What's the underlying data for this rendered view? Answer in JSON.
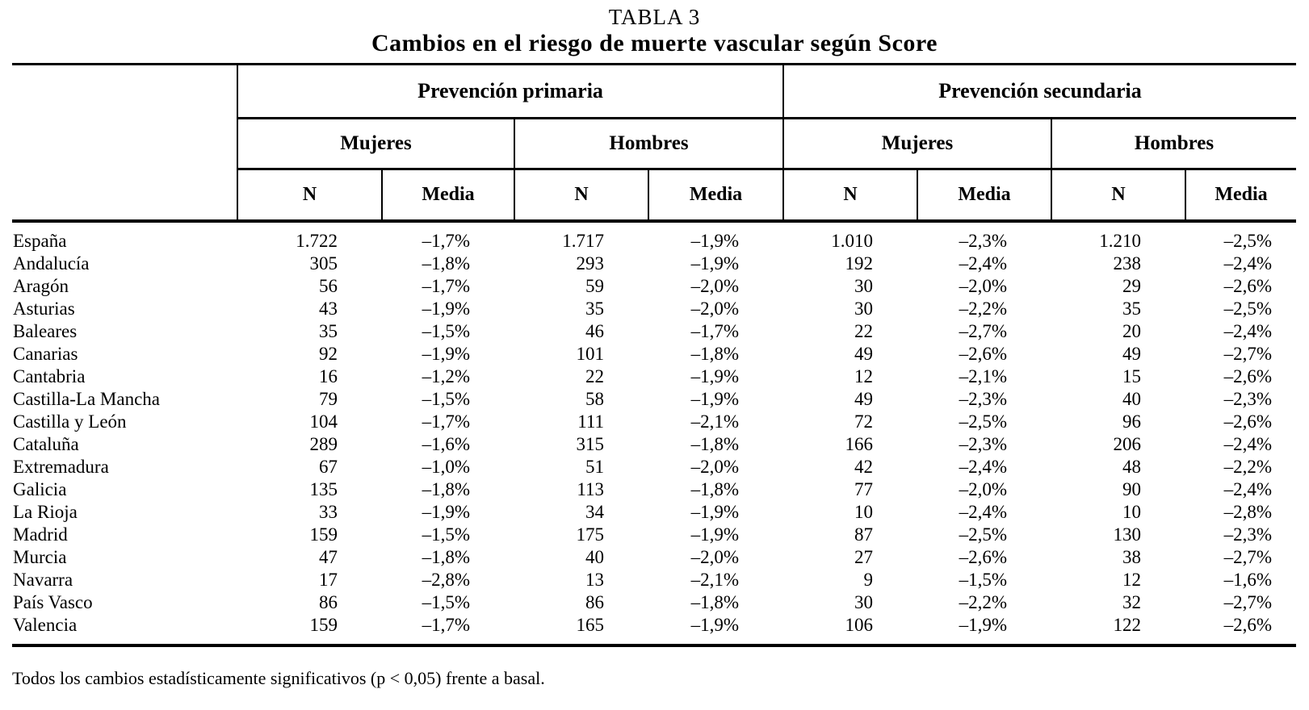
{
  "page": {
    "title_small": "TABLA 3",
    "title_bold": "Cambios en el riesgo de muerte vascular según Score",
    "footnote": "Todos los cambios estadísticamente significativos (p < 0,05) frente a basal.",
    "text_color": "#000000",
    "background_color": "#ffffff"
  },
  "table": {
    "group_headers": [
      "Prevención primaria",
      "Prevención secundaria"
    ],
    "subgroup_headers": [
      "Mujeres",
      "Hombres",
      "Mujeres",
      "Hombres"
    ],
    "col_headers": [
      "N",
      "Media",
      "N",
      "Media",
      "N",
      "Media",
      "N",
      "Media"
    ],
    "rows": [
      {
        "region": "España",
        "values": [
          "1.722",
          "–1,7%",
          "1.717",
          "–1,9%",
          "1.010",
          "–2,3%",
          "1.210",
          "–2,5%"
        ]
      },
      {
        "region": "Andalucía",
        "values": [
          "305",
          "–1,8%",
          "293",
          "–1,9%",
          "192",
          "–2,4%",
          "238",
          "–2,4%"
        ]
      },
      {
        "region": "Aragón",
        "values": [
          "56",
          "–1,7%",
          "59",
          "–2,0%",
          "30",
          "–2,0%",
          "29",
          "–2,6%"
        ]
      },
      {
        "region": "Asturias",
        "values": [
          "43",
          "–1,9%",
          "35",
          "–2,0%",
          "30",
          "–2,2%",
          "35",
          "–2,5%"
        ]
      },
      {
        "region": "Baleares",
        "values": [
          "35",
          "–1,5%",
          "46",
          "–1,7%",
          "22",
          "–2,7%",
          "20",
          "–2,4%"
        ]
      },
      {
        "region": "Canarias",
        "values": [
          "92",
          "–1,9%",
          "101",
          "–1,8%",
          "49",
          "–2,6%",
          "49",
          "–2,7%"
        ]
      },
      {
        "region": "Cantabria",
        "values": [
          "16",
          "–1,2%",
          "22",
          "–1,9%",
          "12",
          "–2,1%",
          "15",
          "–2,6%"
        ]
      },
      {
        "region": "Castilla-La Mancha",
        "values": [
          "79",
          "–1,5%",
          "58",
          "–1,9%",
          "49",
          "–2,3%",
          "40",
          "–2,3%"
        ]
      },
      {
        "region": "Castilla y León",
        "values": [
          "104",
          "–1,7%",
          "111",
          "–2,1%",
          "72",
          "–2,5%",
          "96",
          "–2,6%"
        ]
      },
      {
        "region": "Cataluña",
        "values": [
          "289",
          "–1,6%",
          "315",
          "–1,8%",
          "166",
          "–2,3%",
          "206",
          "–2,4%"
        ]
      },
      {
        "region": "Extremadura",
        "values": [
          "67",
          "–1,0%",
          "51",
          "–2,0%",
          "42",
          "–2,4%",
          "48",
          "–2,2%"
        ]
      },
      {
        "region": "Galicia",
        "values": [
          "135",
          "–1,8%",
          "113",
          "–1,8%",
          "77",
          "–2,0%",
          "90",
          "–2,4%"
        ]
      },
      {
        "region": "La Rioja",
        "values": [
          "33",
          "–1,9%",
          "34",
          "–1,9%",
          "10",
          "–2,4%",
          "10",
          "–2,8%"
        ]
      },
      {
        "region": "Madrid",
        "values": [
          "159",
          "–1,5%",
          "175",
          "–1,9%",
          "87",
          "–2,5%",
          "130",
          "–2,3%"
        ]
      },
      {
        "region": "Murcia",
        "values": [
          "47",
          "–1,8%",
          "40",
          "–2,0%",
          "27",
          "–2,6%",
          "38",
          "–2,7%"
        ]
      },
      {
        "region": "Navarra",
        "values": [
          "17",
          "–2,8%",
          "13",
          "–2,1%",
          "9",
          "–1,5%",
          "12",
          "–1,6%"
        ]
      },
      {
        "region": "País Vasco",
        "values": [
          "86",
          "–1,5%",
          "86",
          "–1,8%",
          "30",
          "–2,2%",
          "32",
          "–2,7%"
        ]
      },
      {
        "region": "Valencia",
        "values": [
          "159",
          "–1,7%",
          "165",
          "–1,9%",
          "106",
          "–1,9%",
          "122",
          "–2,6%"
        ]
      }
    ]
  }
}
